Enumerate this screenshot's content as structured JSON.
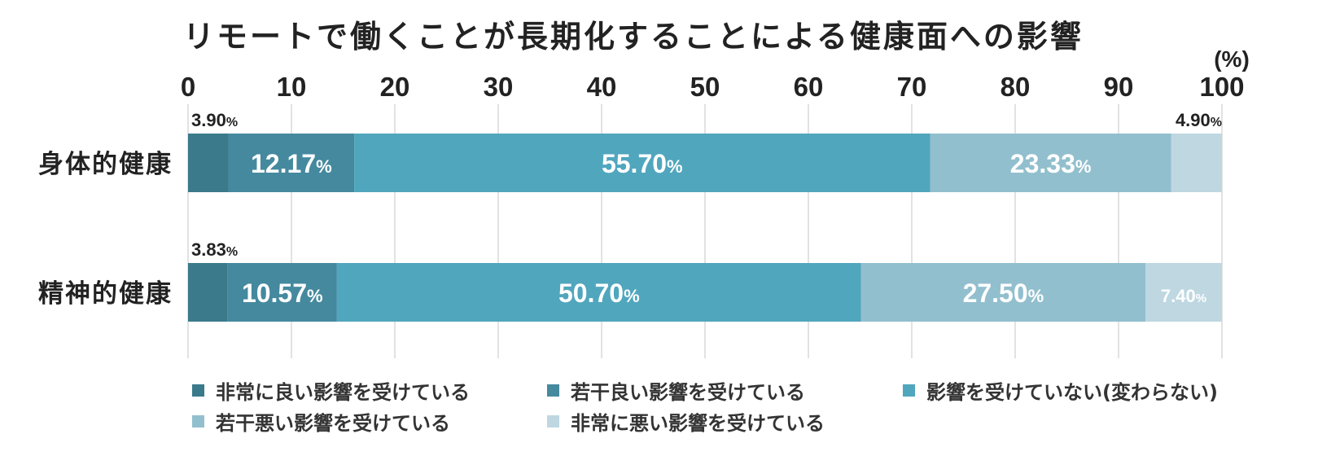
{
  "chart_data": {
    "type": "bar",
    "orientation": "horizontal",
    "stacked": true,
    "title": "リモートで働くことが長期化することによる健康面への影響",
    "unit_label": "(%)",
    "xlim": [
      0,
      100
    ],
    "x_ticks": [
      "0",
      "10",
      "20",
      "30",
      "40",
      "50",
      "60",
      "70",
      "80",
      "90",
      "100"
    ],
    "grid": true,
    "categories": [
      "身体的健康",
      "精神的健康"
    ],
    "series": [
      {
        "name": "非常に良い影響を受けている",
        "color": "#3a7a8a",
        "values": [
          3.9,
          3.83
        ],
        "labels": [
          "3.90",
          "3.83"
        ]
      },
      {
        "name": "若干良い影響を受けている",
        "color": "#45899e",
        "values": [
          12.17,
          10.57
        ],
        "labels": [
          "12.17",
          "10.57"
        ]
      },
      {
        "name": "影響を受けていない(変わらない)",
        "color": "#50a6bd",
        "values": [
          55.7,
          50.7
        ],
        "labels": [
          "55.70",
          "50.70"
        ]
      },
      {
        "name": "若干悪い影響を受けている",
        "color": "#92bfce",
        "values": [
          23.33,
          27.5
        ],
        "labels": [
          "23.33",
          "27.50"
        ]
      },
      {
        "name": "非常に悪い影響を受けている",
        "color": "#bed7e1",
        "values": [
          4.9,
          7.4
        ],
        "labels": [
          "4.90",
          "7.40"
        ]
      }
    ],
    "value_suffix": "%",
    "legend_position": "bottom"
  }
}
